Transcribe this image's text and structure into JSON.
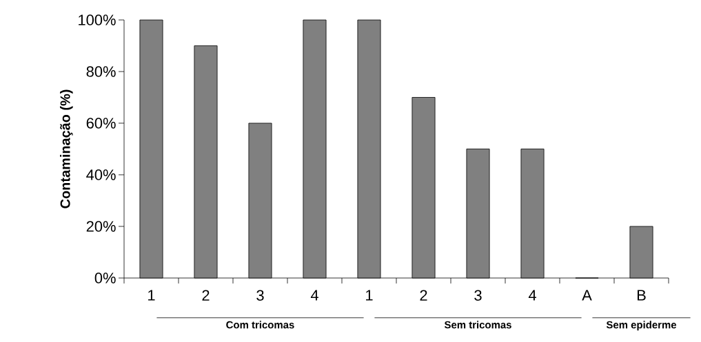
{
  "chart_data": {
    "type": "bar",
    "ylabel": "Contaminação (%)",
    "categories": [
      "1",
      "2",
      "3",
      "4",
      "1",
      "2",
      "3",
      "4",
      "A",
      "B"
    ],
    "values": [
      100,
      90,
      60,
      100,
      100,
      70,
      50,
      50,
      0,
      20
    ],
    "color": "#808080",
    "ylim": [
      0,
      100
    ],
    "yticks": [
      {
        "value": 0,
        "label": "0%"
      },
      {
        "value": 20,
        "label": "20%"
      },
      {
        "value": 40,
        "label": "40%"
      },
      {
        "value": 60,
        "label": "60%"
      },
      {
        "value": 80,
        "label": "80%"
      },
      {
        "value": 100,
        "label": "100%"
      }
    ],
    "annotations": [
      "Com tricomas",
      "Sem tricomas",
      "Sem epiderme"
    ],
    "grid": false
  }
}
